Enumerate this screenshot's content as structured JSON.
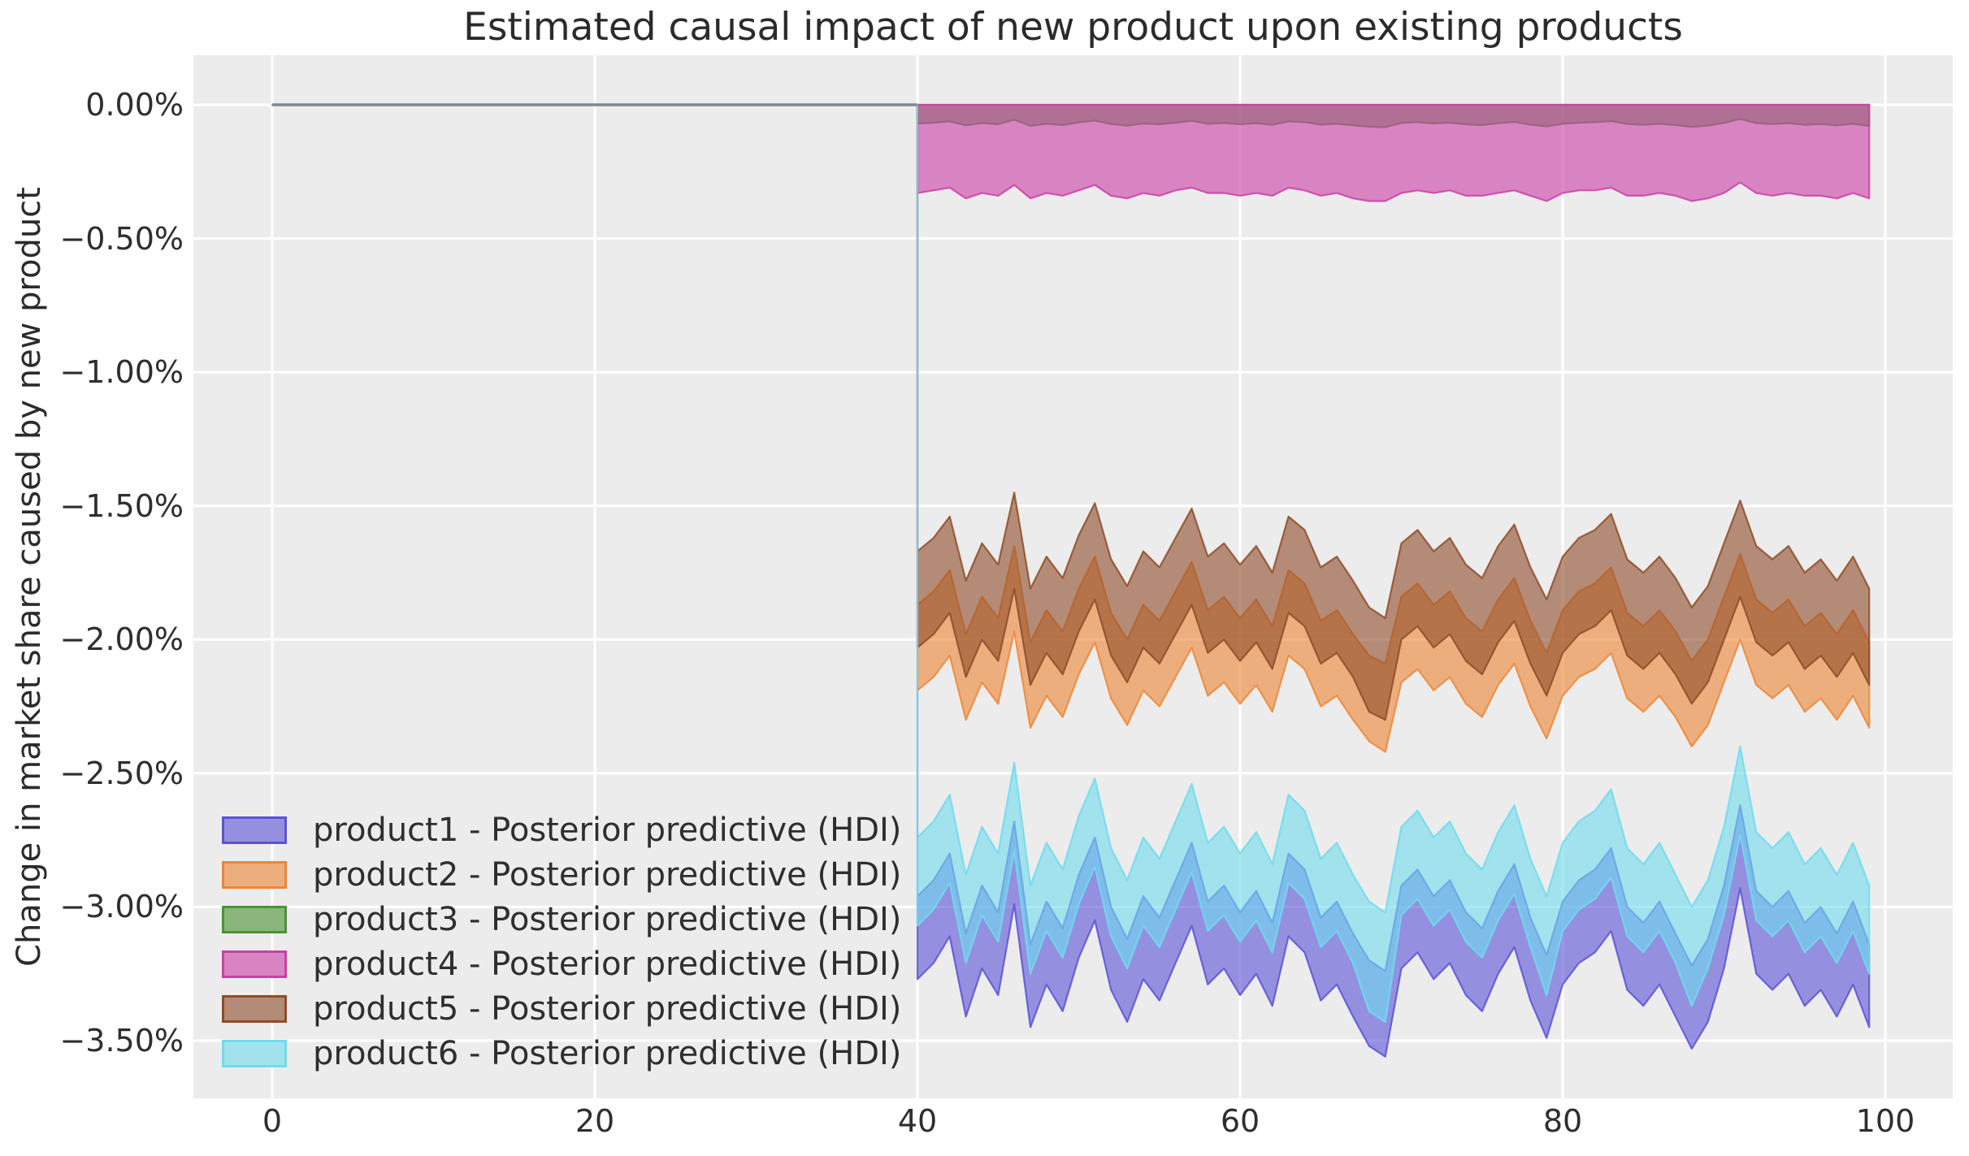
{
  "title": "Estimated causal impact of new product upon existing products",
  "ylabel": "Change in market share caused by new product",
  "chart_data": {
    "type": "area",
    "description": "HDI bands per product; flat at 0 for x in [0,40] (pre period), causal impact bands for x in [40,99]",
    "pre_period": {
      "x_start": 0,
      "x_end": 40,
      "value": 0
    },
    "x_post_start": 40,
    "x_post_step": 1,
    "n_post": 60,
    "x_ticks": [
      "0",
      "20",
      "40",
      "60",
      "80",
      "100"
    ],
    "x_tick_values": [
      0,
      20,
      40,
      60,
      80,
      100
    ],
    "y_ticks": [
      "0.00%",
      "−0.50%",
      "−1.00%",
      "−1.50%",
      "−2.00%",
      "−2.50%",
      "−3.00%",
      "−3.50%"
    ],
    "y_tick_values": [
      0,
      -0.5,
      -1,
      -1.5,
      -2,
      -2.5,
      -3,
      -3.5
    ],
    "xlim": [
      -4.9,
      104.2
    ],
    "ylim": [
      -3.71,
      0.19
    ],
    "grid": true,
    "plot_bg": "#ECECEC",
    "grid_color": "#ffffff",
    "pre_line_color": "#7b8a8e",
    "legend_position": "lower left",
    "series": [
      {
        "name": "product1",
        "label": "product1 - Posterior predictive (HDI)",
        "color": "#5B51D8",
        "upper": [
          -2.96,
          -2.9,
          -2.8,
          -3.1,
          -2.92,
          -3.02,
          -2.68,
          -3.14,
          -2.98,
          -3.08,
          -2.88,
          -2.74,
          -3.0,
          -3.12,
          -2.96,
          -3.04,
          -2.9,
          -2.76,
          -2.98,
          -2.92,
          -3.02,
          -2.94,
          -3.06,
          -2.8,
          -2.86,
          -3.04,
          -2.98,
          -3.1,
          -3.2,
          -3.24,
          -2.92,
          -2.86,
          -2.96,
          -2.9,
          -3.02,
          -3.08,
          -2.94,
          -2.84,
          -3.04,
          -3.18,
          -2.98,
          -2.9,
          -2.86,
          -2.78,
          -3.0,
          -3.06,
          -2.98,
          -3.1,
          -3.22,
          -3.12,
          -2.92,
          -2.62,
          -2.94,
          -3.0,
          -2.94,
          -3.06,
          -3.0,
          -3.1,
          -2.98,
          -3.14
        ],
        "lower": [
          -3.27,
          -3.21,
          -3.11,
          -3.41,
          -3.23,
          -3.33,
          -2.99,
          -3.45,
          -3.29,
          -3.39,
          -3.19,
          -3.05,
          -3.31,
          -3.43,
          -3.27,
          -3.35,
          -3.21,
          -3.07,
          -3.29,
          -3.23,
          -3.33,
          -3.25,
          -3.37,
          -3.11,
          -3.17,
          -3.35,
          -3.29,
          -3.41,
          -3.52,
          -3.56,
          -3.23,
          -3.17,
          -3.27,
          -3.21,
          -3.33,
          -3.39,
          -3.25,
          -3.15,
          -3.35,
          -3.49,
          -3.29,
          -3.21,
          -3.17,
          -3.09,
          -3.31,
          -3.37,
          -3.29,
          -3.41,
          -3.53,
          -3.43,
          -3.23,
          -2.93,
          -3.25,
          -3.31,
          -3.25,
          -3.37,
          -3.31,
          -3.41,
          -3.29,
          -3.45
        ]
      },
      {
        "name": "product2",
        "label": "product2 - Posterior predictive (HDI)",
        "color": "#EE8635",
        "upper": [
          -1.87,
          -1.82,
          -1.74,
          -1.98,
          -1.84,
          -1.92,
          -1.65,
          -2.01,
          -1.89,
          -1.97,
          -1.81,
          -1.69,
          -1.9,
          -2.0,
          -1.87,
          -1.93,
          -1.82,
          -1.71,
          -1.89,
          -1.84,
          -1.92,
          -1.85,
          -1.95,
          -1.74,
          -1.79,
          -1.93,
          -1.89,
          -1.98,
          -2.06,
          -2.09,
          -1.84,
          -1.79,
          -1.87,
          -1.82,
          -1.92,
          -1.97,
          -1.85,
          -1.77,
          -1.93,
          -2.05,
          -1.89,
          -1.82,
          -1.79,
          -1.73,
          -1.9,
          -1.95,
          -1.89,
          -1.97,
          -2.08,
          -2.0,
          -1.84,
          -1.68,
          -1.85,
          -1.9,
          -1.85,
          -1.95,
          -1.9,
          -1.98,
          -1.89,
          -2.01
        ],
        "lower": [
          -2.19,
          -2.14,
          -2.06,
          -2.3,
          -2.16,
          -2.24,
          -1.97,
          -2.33,
          -2.21,
          -2.29,
          -2.13,
          -2.01,
          -2.22,
          -2.32,
          -2.19,
          -2.25,
          -2.14,
          -2.03,
          -2.21,
          -2.16,
          -2.24,
          -2.17,
          -2.27,
          -2.06,
          -2.11,
          -2.25,
          -2.21,
          -2.3,
          -2.38,
          -2.42,
          -2.16,
          -2.11,
          -2.19,
          -2.14,
          -2.24,
          -2.29,
          -2.17,
          -2.09,
          -2.25,
          -2.37,
          -2.21,
          -2.14,
          -2.11,
          -2.05,
          -2.22,
          -2.27,
          -2.21,
          -2.29,
          -2.4,
          -2.32,
          -2.16,
          -2.0,
          -2.17,
          -2.22,
          -2.17,
          -2.27,
          -2.22,
          -2.3,
          -2.21,
          -2.33
        ]
      },
      {
        "name": "product3",
        "label": "product3 - Posterior predictive (HDI)",
        "color": "#4A9334",
        "upper": [
          0,
          0,
          0,
          0,
          0,
          0,
          0,
          0,
          0,
          0,
          0,
          0,
          0,
          0,
          0,
          0,
          0,
          0,
          0,
          0,
          0,
          0,
          0,
          0,
          0,
          0,
          0,
          0,
          0,
          0,
          0,
          0,
          0,
          0,
          0,
          0,
          0,
          0,
          0,
          0,
          0,
          0,
          0,
          0,
          0,
          0,
          0,
          0,
          0,
          0,
          0,
          0,
          0,
          0,
          0,
          0,
          0,
          0,
          0,
          0
        ],
        "lower": [
          -0.07,
          -0.067,
          -0.062,
          -0.077,
          -0.068,
          -0.073,
          -0.056,
          -0.079,
          -0.071,
          -0.076,
          -0.066,
          -0.059,
          -0.072,
          -0.078,
          -0.07,
          -0.073,
          -0.067,
          -0.06,
          -0.071,
          -0.068,
          -0.073,
          -0.069,
          -0.075,
          -0.062,
          -0.065,
          -0.074,
          -0.071,
          -0.077,
          -0.082,
          -0.084,
          -0.068,
          -0.065,
          -0.07,
          -0.067,
          -0.073,
          -0.076,
          -0.069,
          -0.064,
          -0.074,
          -0.081,
          -0.071,
          -0.067,
          -0.065,
          -0.061,
          -0.072,
          -0.075,
          -0.071,
          -0.076,
          -0.083,
          -0.078,
          -0.068,
          -0.053,
          -0.069,
          -0.072,
          -0.069,
          -0.075,
          -0.072,
          -0.077,
          -0.071,
          -0.079
        ]
      },
      {
        "name": "product4",
        "label": "product4 - Posterior predictive (HDI)",
        "color": "#CC3FA6",
        "upper": [
          0,
          0,
          0,
          0,
          0,
          0,
          0,
          0,
          0,
          0,
          0,
          0,
          0,
          0,
          0,
          0,
          0,
          0,
          0,
          0,
          0,
          0,
          0,
          0,
          0,
          0,
          0,
          0,
          0,
          0,
          0,
          0,
          0,
          0,
          0,
          0,
          0,
          0,
          0,
          0,
          0,
          0,
          0,
          0,
          0,
          0,
          0,
          0,
          0,
          0,
          0,
          0,
          0,
          0,
          0,
          0,
          0,
          0,
          0,
          0
        ],
        "lower": [
          -0.33,
          -0.32,
          -0.31,
          -0.35,
          -0.33,
          -0.34,
          -0.3,
          -0.35,
          -0.33,
          -0.34,
          -0.32,
          -0.3,
          -0.34,
          -0.35,
          -0.33,
          -0.34,
          -0.32,
          -0.31,
          -0.33,
          -0.33,
          -0.34,
          -0.33,
          -0.34,
          -0.31,
          -0.32,
          -0.34,
          -0.33,
          -0.35,
          -0.36,
          -0.36,
          -0.33,
          -0.32,
          -0.33,
          -0.32,
          -0.34,
          -0.34,
          -0.33,
          -0.32,
          -0.34,
          -0.36,
          -0.33,
          -0.32,
          -0.32,
          -0.31,
          -0.34,
          -0.34,
          -0.33,
          -0.34,
          -0.36,
          -0.35,
          -0.33,
          -0.29,
          -0.33,
          -0.34,
          -0.33,
          -0.34,
          -0.34,
          -0.35,
          -0.33,
          -0.35
        ]
      },
      {
        "name": "product5",
        "label": "product5 - Posterior predictive (HDI)",
        "color": "#8F4B28",
        "upper": [
          -1.67,
          -1.62,
          -1.54,
          -1.78,
          -1.64,
          -1.72,
          -1.45,
          -1.81,
          -1.69,
          -1.77,
          -1.61,
          -1.49,
          -1.7,
          -1.8,
          -1.67,
          -1.73,
          -1.62,
          -1.51,
          -1.69,
          -1.64,
          -1.72,
          -1.65,
          -1.75,
          -1.54,
          -1.59,
          -1.73,
          -1.69,
          -1.78,
          -1.88,
          -1.92,
          -1.64,
          -1.59,
          -1.67,
          -1.62,
          -1.72,
          -1.77,
          -1.65,
          -1.57,
          -1.73,
          -1.85,
          -1.69,
          -1.62,
          -1.59,
          -1.53,
          -1.7,
          -1.75,
          -1.69,
          -1.77,
          -1.88,
          -1.8,
          -1.64,
          -1.48,
          -1.65,
          -1.7,
          -1.65,
          -1.75,
          -1.7,
          -1.78,
          -1.69,
          -1.81
        ],
        "lower": [
          -2.03,
          -1.98,
          -1.9,
          -2.14,
          -2.0,
          -2.08,
          -1.81,
          -2.17,
          -2.05,
          -2.13,
          -1.97,
          -1.85,
          -2.06,
          -2.16,
          -2.03,
          -2.09,
          -1.98,
          -1.87,
          -2.05,
          -2.0,
          -2.08,
          -2.01,
          -2.11,
          -1.9,
          -1.95,
          -2.09,
          -2.05,
          -2.14,
          -2.27,
          -2.3,
          -2.0,
          -1.95,
          -2.03,
          -1.98,
          -2.08,
          -2.13,
          -2.01,
          -1.93,
          -2.09,
          -2.21,
          -2.05,
          -1.98,
          -1.95,
          -1.89,
          -2.06,
          -2.11,
          -2.05,
          -2.13,
          -2.24,
          -2.16,
          -2.0,
          -1.84,
          -2.01,
          -2.06,
          -2.01,
          -2.11,
          -2.06,
          -2.14,
          -2.05,
          -2.17
        ]
      },
      {
        "name": "product6",
        "label": "product6 - Posterior predictive (HDI)",
        "color": "#6FDCEE",
        "upper": [
          -2.74,
          -2.68,
          -2.58,
          -2.88,
          -2.7,
          -2.8,
          -2.46,
          -2.92,
          -2.76,
          -2.86,
          -2.66,
          -2.52,
          -2.78,
          -2.9,
          -2.74,
          -2.82,
          -2.68,
          -2.54,
          -2.76,
          -2.7,
          -2.8,
          -2.72,
          -2.84,
          -2.58,
          -2.64,
          -2.82,
          -2.76,
          -2.88,
          -2.98,
          -3.02,
          -2.7,
          -2.64,
          -2.74,
          -2.68,
          -2.8,
          -2.86,
          -2.72,
          -2.62,
          -2.82,
          -2.96,
          -2.76,
          -2.68,
          -2.64,
          -2.56,
          -2.78,
          -2.84,
          -2.76,
          -2.88,
          -3.0,
          -2.9,
          -2.7,
          -2.4,
          -2.72,
          -2.78,
          -2.72,
          -2.84,
          -2.78,
          -2.88,
          -2.76,
          -2.92
        ],
        "lower": [
          -3.07,
          -3.01,
          -2.91,
          -3.21,
          -3.03,
          -3.13,
          -2.79,
          -3.25,
          -3.09,
          -3.19,
          -2.99,
          -2.85,
          -3.11,
          -3.23,
          -3.07,
          -3.15,
          -3.01,
          -2.87,
          -3.09,
          -3.03,
          -3.13,
          -3.05,
          -3.17,
          -2.91,
          -2.97,
          -3.15,
          -3.09,
          -3.21,
          -3.39,
          -3.43,
          -3.03,
          -2.97,
          -3.07,
          -3.01,
          -3.13,
          -3.19,
          -3.05,
          -2.95,
          -3.15,
          -3.33,
          -3.09,
          -3.01,
          -2.97,
          -2.89,
          -3.11,
          -3.17,
          -3.09,
          -3.21,
          -3.37,
          -3.23,
          -3.03,
          -2.73,
          -3.05,
          -3.11,
          -3.05,
          -3.17,
          -3.11,
          -3.21,
          -3.09,
          -3.25
        ]
      }
    ]
  }
}
